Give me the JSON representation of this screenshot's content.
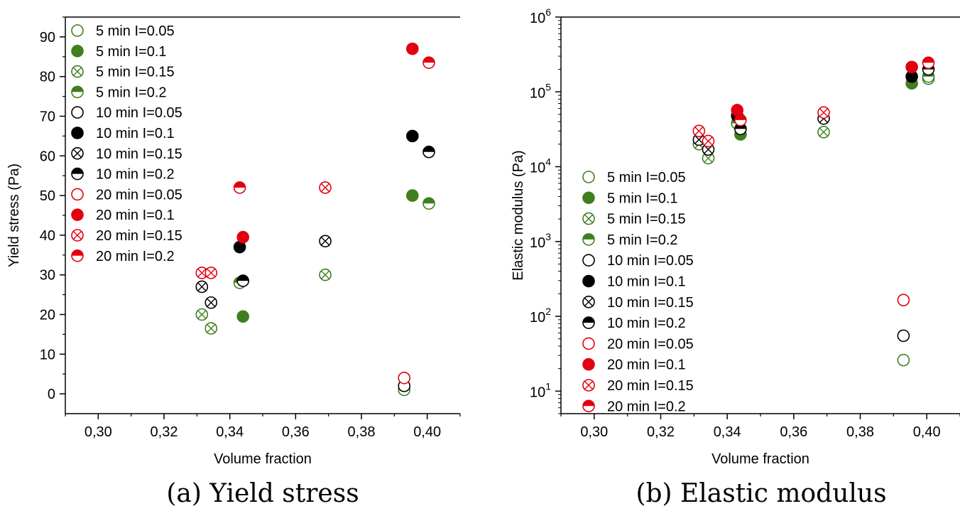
{
  "chart_data": [
    {
      "type": "scatter",
      "caption": "(a) Yield stress",
      "xlabel": "Volume fraction",
      "ylabel": "Yield stress (Pa)",
      "xlim": [
        0.29,
        0.41
      ],
      "ylim": [
        -5,
        95
      ],
      "yscale": "linear",
      "xticks": [
        "0,30",
        "0,32",
        "0,34",
        "0,36",
        "0,38",
        "0,40"
      ],
      "yticks": [
        "0",
        "10",
        "20",
        "30",
        "40",
        "50",
        "60",
        "70",
        "80",
        "90"
      ],
      "grid": false,
      "legend_position": "top-left",
      "series": [
        {
          "name": "5 min I=0.05",
          "color": "#3f7f1f",
          "marker": "open-circle",
          "points": [
            [
              0.393,
              1
            ]
          ]
        },
        {
          "name": "5 min I=0.1",
          "color": "#3f7f1f",
          "marker": "filled-circle",
          "points": [
            [
              0.344,
              19.5
            ],
            [
              0.3955,
              50
            ]
          ]
        },
        {
          "name": "5 min I=0.15",
          "color": "#3f7f1f",
          "marker": "crossed-circle",
          "points": [
            [
              0.3315,
              20
            ],
            [
              0.3343,
              16.5
            ],
            [
              0.369,
              30
            ]
          ]
        },
        {
          "name": "5 min I=0.2",
          "color": "#3f7f1f",
          "marker": "half-circle",
          "points": [
            [
              0.343,
              28
            ],
            [
              0.4005,
              48
            ]
          ]
        },
        {
          "name": "10 min I=0.05",
          "color": "#000000",
          "marker": "open-circle",
          "points": [
            [
              0.393,
              2
            ]
          ]
        },
        {
          "name": "10 min I=0.1",
          "color": "#000000",
          "marker": "filled-circle",
          "points": [
            [
              0.343,
              37
            ],
            [
              0.3955,
              65
            ]
          ]
        },
        {
          "name": "10 min I=0.15",
          "color": "#000000",
          "marker": "crossed-circle",
          "points": [
            [
              0.3315,
              27
            ],
            [
              0.3343,
              23
            ],
            [
              0.369,
              38.5
            ]
          ]
        },
        {
          "name": "10 min I=0.2",
          "color": "#000000",
          "marker": "half-circle",
          "points": [
            [
              0.344,
              28.5
            ],
            [
              0.4005,
              61
            ]
          ]
        },
        {
          "name": "20 min I=0.05",
          "color": "#e3000f",
          "marker": "open-circle",
          "points": [
            [
              0.393,
              4
            ]
          ]
        },
        {
          "name": "20 min I=0.1",
          "color": "#e3000f",
          "marker": "filled-circle",
          "points": [
            [
              0.344,
              39.5
            ],
            [
              0.3955,
              87
            ]
          ]
        },
        {
          "name": "20 min I=0.15",
          "color": "#e3000f",
          "marker": "crossed-circle",
          "points": [
            [
              0.3315,
              30.5
            ],
            [
              0.3343,
              30.5
            ],
            [
              0.369,
              52
            ]
          ]
        },
        {
          "name": "20 min I=0.2",
          "color": "#e3000f",
          "marker": "half-circle",
          "points": [
            [
              0.343,
              52
            ],
            [
              0.4005,
              83.5
            ]
          ]
        }
      ]
    },
    {
      "type": "scatter",
      "caption": "(b) Elastic modulus",
      "xlabel": "Volume fraction",
      "ylabel": "Elastic modulus (Pa)",
      "xlim": [
        0.29,
        0.41
      ],
      "ylim": [
        5,
        1000000
      ],
      "yscale": "log",
      "xticks": [
        "0,30",
        "0,32",
        "0,34",
        "0,36",
        "0,38",
        "0,40"
      ],
      "yticks": [
        {
          "base": "10",
          "exp": "1"
        },
        {
          "base": "10",
          "exp": "2"
        },
        {
          "base": "10",
          "exp": "3"
        },
        {
          "base": "10",
          "exp": "4"
        },
        {
          "base": "10",
          "exp": "5"
        },
        {
          "base": "10",
          "exp": "6"
        }
      ],
      "grid": false,
      "legend_position": "bottom-left",
      "series": [
        {
          "name": "5 min I=0.05",
          "color": "#3f7f1f",
          "marker": "open-circle",
          "points": [
            [
              0.393,
              26
            ],
            [
              0.4005,
              150000
            ]
          ]
        },
        {
          "name": "5 min I=0.1",
          "color": "#3f7f1f",
          "marker": "filled-circle",
          "points": [
            [
              0.344,
              27000
            ],
            [
              0.3955,
              130000
            ]
          ]
        },
        {
          "name": "5 min I=0.15",
          "color": "#3f7f1f",
          "marker": "crossed-circle",
          "points": [
            [
              0.3315,
              20000
            ],
            [
              0.3343,
              13000
            ],
            [
              0.369,
              29000
            ]
          ]
        },
        {
          "name": "5 min I=0.2",
          "color": "#3f7f1f",
          "marker": "half-circle",
          "points": [
            [
              0.343,
              38000
            ],
            [
              0.4005,
              160000
            ]
          ]
        },
        {
          "name": "10 min I=0.05",
          "color": "#000000",
          "marker": "open-circle",
          "points": [
            [
              0.393,
              55
            ]
          ]
        },
        {
          "name": "10 min I=0.1",
          "color": "#000000",
          "marker": "filled-circle",
          "points": [
            [
              0.343,
              48000
            ],
            [
              0.3955,
              160000
            ]
          ]
        },
        {
          "name": "10 min I=0.15",
          "color": "#000000",
          "marker": "crossed-circle",
          "points": [
            [
              0.3315,
              23000
            ],
            [
              0.3343,
              17000
            ],
            [
              0.369,
              44000
            ]
          ]
        },
        {
          "name": "10 min I=0.2",
          "color": "#000000",
          "marker": "half-circle",
          "points": [
            [
              0.344,
              32000
            ],
            [
              0.4005,
              200000
            ]
          ]
        },
        {
          "name": "20 min I=0.05",
          "color": "#e3000f",
          "marker": "open-circle",
          "points": [
            [
              0.393,
              165
            ]
          ]
        },
        {
          "name": "20 min I=0.1",
          "color": "#e3000f",
          "marker": "filled-circle",
          "points": [
            [
              0.343,
              57000
            ],
            [
              0.3955,
              215000
            ]
          ]
        },
        {
          "name": "20 min I=0.15",
          "color": "#e3000f",
          "marker": "crossed-circle",
          "points": [
            [
              0.3315,
              30000
            ],
            [
              0.3343,
              22000
            ],
            [
              0.369,
              53000
            ]
          ]
        },
        {
          "name": "20 min I=0.2",
          "color": "#e3000f",
          "marker": "half-circle",
          "points": [
            [
              0.344,
              42000
            ],
            [
              0.4005,
              245000
            ]
          ]
        }
      ]
    }
  ]
}
